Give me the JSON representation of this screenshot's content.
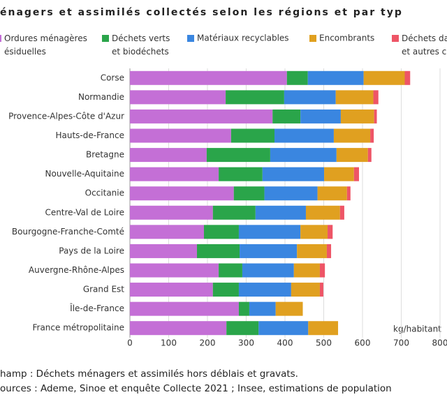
{
  "chart_data": {
    "type": "stacked-barh",
    "title": "énagers et assimilés collectés selon les régions et par typ",
    "categories": [
      "Corse",
      "Normandie",
      "Provence-Alpes-Côte d'Azur",
      "Hauts-de-France",
      "Bretagne",
      "Nouvelle-Aquitaine",
      "Occitanie",
      "Centre-Val de Loire",
      "Bourgogne-Franche-Comté",
      "Pays de la Loire",
      "Auvergne-Rhône-Alpes",
      "Grand Est",
      "Île-de-France",
      "France métropolitaine"
    ],
    "series": [
      {
        "name": "Ordures ménagères ésiduelles",
        "color": "#c46fd6",
        "values": [
          405,
          247,
          368,
          261,
          198,
          229,
          268,
          214,
          191,
          173,
          229,
          214,
          281,
          249
        ]
      },
      {
        "name": "Déchets verts et biodéchets",
        "color": "#2aa54a",
        "values": [
          54,
          151,
          72,
          112,
          164,
          113,
          79,
          110,
          90,
          110,
          61,
          67,
          27,
          83
        ]
      },
      {
        "name": "Matériaux recyclables",
        "color": "#3a86e0",
        "values": [
          144,
          133,
          104,
          153,
          171,
          159,
          137,
          130,
          159,
          148,
          133,
          135,
          68,
          128
        ]
      },
      {
        "name": "Encombrants",
        "color": "#e0a020",
        "values": [
          106,
          97,
          86,
          94,
          81,
          77,
          76,
          88,
          70,
          77,
          67,
          74,
          70,
          77
        ]
      },
      {
        "name": "Déchets da et autres c",
        "color": "#ee5566",
        "values": [
          14,
          13,
          7,
          9,
          9,
          13,
          9,
          11,
          13,
          11,
          13,
          9,
          0,
          0
        ]
      }
    ],
    "xlabel": "kg/habitant",
    "xlim": [
      0,
      800
    ],
    "xticks": [
      0,
      100,
      200,
      300,
      400,
      500,
      600,
      700,
      800
    ],
    "grid": true,
    "notes": [
      "hamp : Déchets ménagers et assimilés hors déblais et gravats.",
      "ources : Ademe, Sinoe et enquête Collecte 2021 ; Insee, estimations de population"
    ]
  }
}
